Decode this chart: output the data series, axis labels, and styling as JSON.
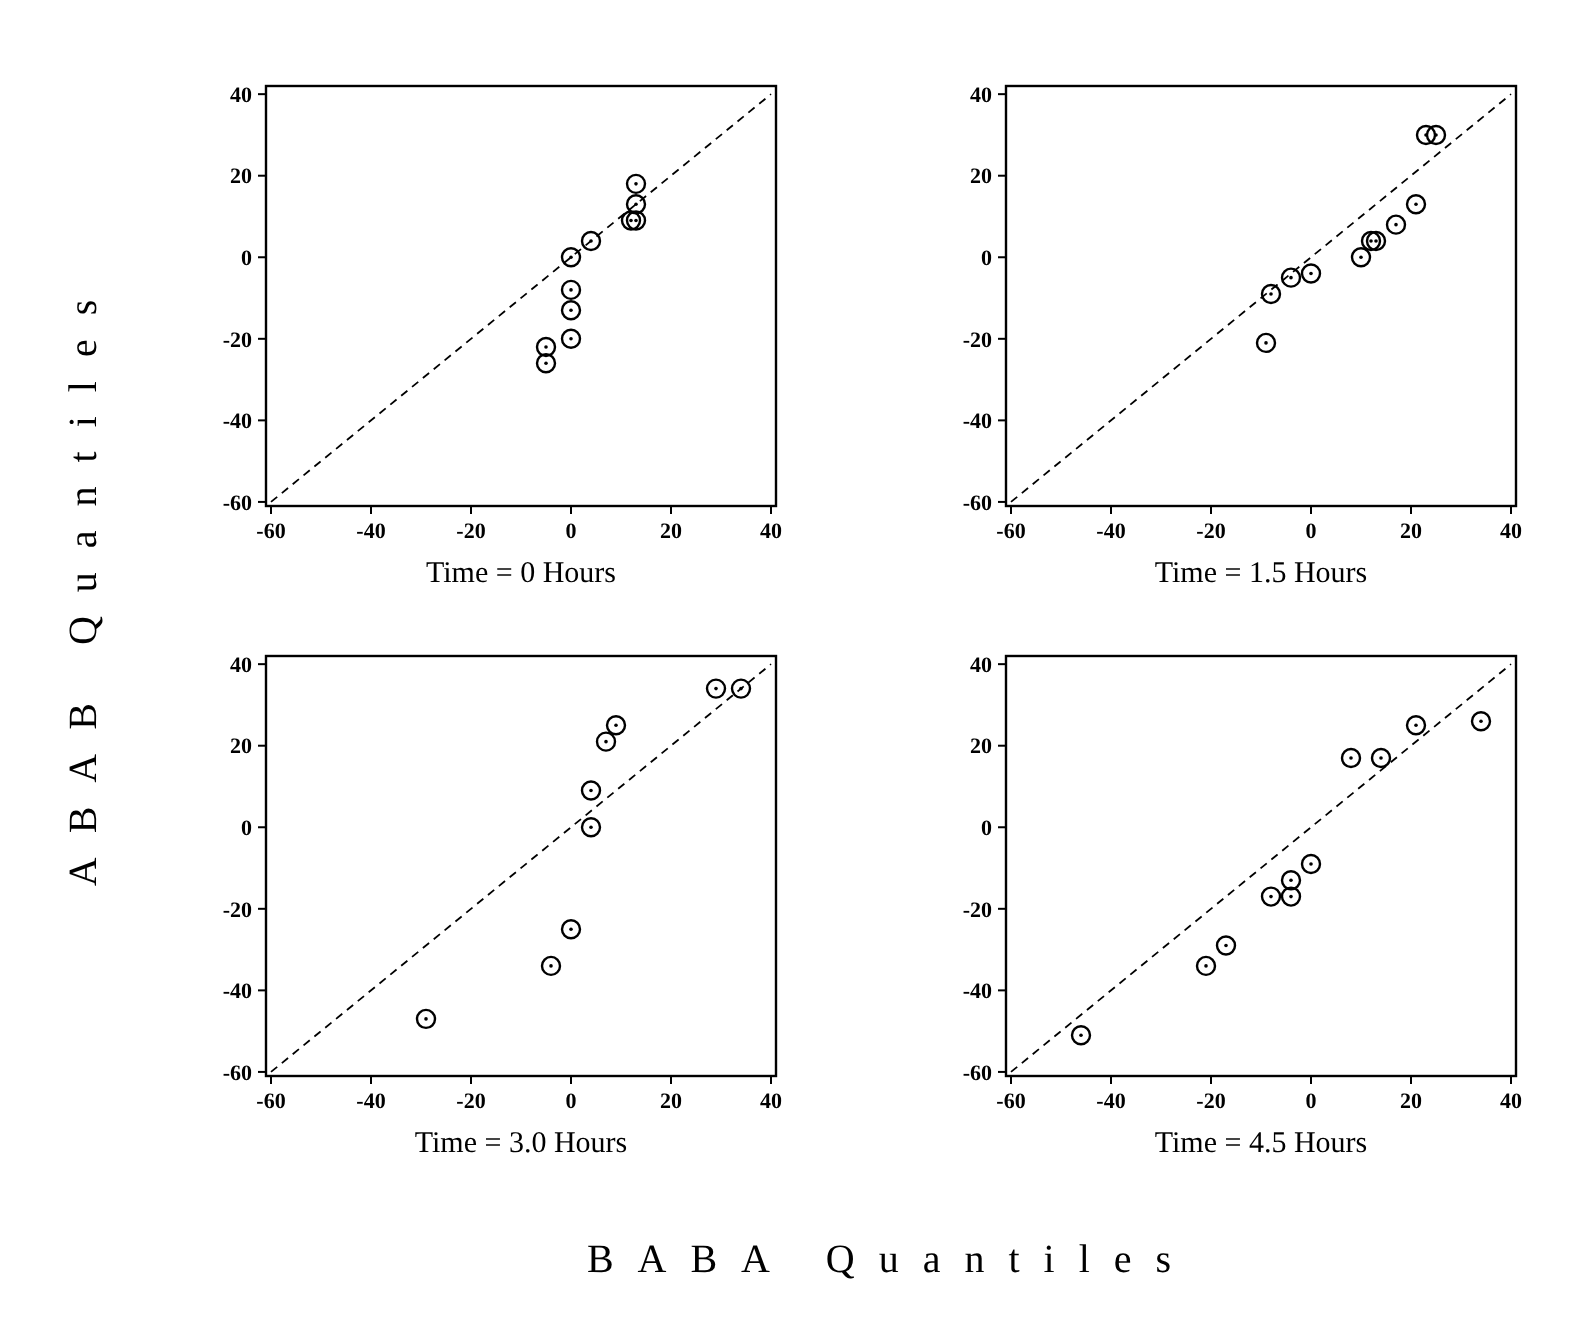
{
  "chart_data": [
    {
      "type": "scatter",
      "xlabel": "Time = 0 Hours",
      "ylabel": "ABAB Quantiles",
      "annotations": [
        "BABA Quantiles"
      ],
      "xlim": [
        -61,
        41
      ],
      "ylim": [
        -61,
        42
      ],
      "xticks": [
        -60,
        -40,
        -20,
        0,
        20,
        40
      ],
      "yticks": [
        -60,
        -40,
        -20,
        0,
        20,
        40
      ],
      "series": [
        {
          "marker": "circle",
          "color": "#000000",
          "x": [
            -5,
            -5,
            0,
            0,
            0,
            0,
            4,
            12,
            13,
            13,
            13
          ],
          "values": [
            -26,
            -22,
            -20,
            -13,
            -8,
            0,
            4,
            9,
            9,
            13,
            18
          ]
        },
        {
          "type": "line",
          "color": "#000000",
          "line_style": "dashed",
          "x": [
            -60,
            40
          ],
          "values": [
            -60,
            40
          ]
        }
      ]
    },
    {
      "type": "scatter",
      "xlabel": "Time = 1.5 Hours",
      "xlim": [
        -61,
        41
      ],
      "ylim": [
        -61,
        42
      ],
      "xticks": [
        -60,
        -40,
        -20,
        0,
        20,
        40
      ],
      "yticks": [
        -60,
        -40,
        -20,
        0,
        20,
        40
      ],
      "series": [
        {
          "marker": "circle",
          "color": "#000000",
          "x": [
            -9,
            -8,
            -4,
            0,
            10,
            12,
            13,
            17,
            21,
            23,
            25
          ],
          "values": [
            -21,
            -9,
            -5,
            -4,
            0,
            4,
            4,
            8,
            13,
            30,
            30
          ]
        },
        {
          "type": "line",
          "color": "#000000",
          "line_style": "dashed",
          "x": [
            -60,
            40
          ],
          "values": [
            -60,
            40
          ]
        }
      ]
    },
    {
      "type": "scatter",
      "xlabel": "Time = 3.0 Hours",
      "xlim": [
        -61,
        41
      ],
      "ylim": [
        -61,
        42
      ],
      "xticks": [
        -60,
        -40,
        -20,
        0,
        20,
        40
      ],
      "yticks": [
        -60,
        -40,
        -20,
        0,
        20,
        40
      ],
      "series": [
        {
          "marker": "circle",
          "color": "#000000",
          "x": [
            -29,
            -4,
            0,
            4,
            4,
            7,
            9,
            29,
            34
          ],
          "values": [
            -47,
            -34,
            -25,
            0,
            9,
            21,
            25,
            34,
            34
          ]
        },
        {
          "type": "line",
          "color": "#000000",
          "line_style": "dashed",
          "x": [
            -60,
            40
          ],
          "values": [
            -60,
            40
          ]
        }
      ]
    },
    {
      "type": "scatter",
      "xlabel": "Time = 4.5 Hours",
      "xlim": [
        -61,
        41
      ],
      "ylim": [
        -61,
        42
      ],
      "xticks": [
        -60,
        -40,
        -20,
        0,
        20,
        40
      ],
      "yticks": [
        -60,
        -40,
        -20,
        0,
        20,
        40
      ],
      "series": [
        {
          "marker": "circle",
          "color": "#000000",
          "x": [
            -46,
            -21,
            -17,
            -8,
            -4,
            -4,
            0,
            8,
            14,
            21,
            34
          ],
          "values": [
            -51,
            -34,
            -29,
            -17,
            -17,
            -13,
            -9,
            17,
            17,
            25,
            26
          ]
        },
        {
          "type": "line",
          "color": "#000000",
          "line_style": "dashed",
          "x": [
            -60,
            40
          ],
          "values": [
            -60,
            40
          ]
        }
      ]
    }
  ]
}
